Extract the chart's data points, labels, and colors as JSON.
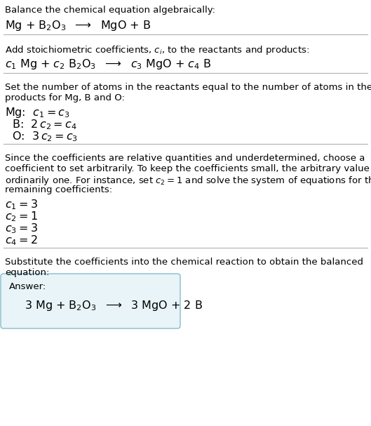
{
  "bg_color": "#ffffff",
  "text_color": "#000000",
  "separator_color": "#b0b0b0",
  "answer_box_color": "#e8f4f8",
  "answer_box_border": "#88bbcc",
  "section1_line1": "Balance the chemical equation algebraically:",
  "section1_line2": "Mg + B$_2$O$_3$  $\\longrightarrow$  MgO + B",
  "section2_line1": "Add stoichiometric coefficients, $c_i$, to the reactants and products:",
  "section2_line2": "$c_1$ Mg + $c_2$ B$_2$O$_3$  $\\longrightarrow$  $c_3$ MgO + $c_4$ B",
  "section3_line1": "Set the number of atoms in the reactants equal to the number of atoms in the",
  "section3_line2": "products for Mg, B and O:",
  "section3_mg": "Mg:  $c_1 = c_3$",
  "section3_b": "  B:  $2\\,c_2 = c_4$",
  "section3_o": "  O:  $3\\,c_2 = c_3$",
  "section4_line1": "Since the coefficients are relative quantities and underdetermined, choose a",
  "section4_line2": "coefficient to set arbitrarily. To keep the coefficients small, the arbitrary value is",
  "section4_line3": "ordinarily one. For instance, set $c_2 = 1$ and solve the system of equations for the",
  "section4_line4": "remaining coefficients:",
  "section4_c1": "$c_1 = 3$",
  "section4_c2": "$c_2 = 1$",
  "section4_c3": "$c_3 = 3$",
  "section4_c4": "$c_4 = 2$",
  "section5_line1": "Substitute the coefficients into the chemical reaction to obtain the balanced",
  "section5_line2": "equation:",
  "answer_label": "Answer:",
  "answer_eq": "3 Mg + B$_2$O$_3$  $\\longrightarrow$  3 MgO + 2 B",
  "small_fontsize": 9.5,
  "large_fontsize": 11.5,
  "coeff_fontsize": 12.0
}
